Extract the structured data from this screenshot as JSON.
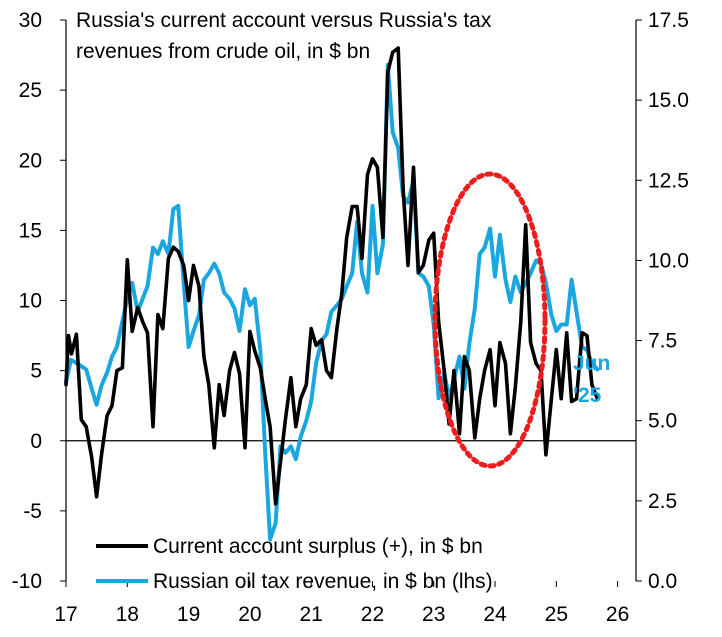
{
  "chart_data": {
    "type": "line",
    "title": "Russia's current account versus Russia's tax revenues from crude oil, in $ bn",
    "title_lines": [
      "Russia's current account versus Russia's tax",
      "revenues from crude oil, in $ bn"
    ],
    "x_ticks": [
      "17",
      "18",
      "19",
      "20",
      "21",
      "22",
      "23",
      "24",
      "25",
      "26"
    ],
    "xlim": [
      2017,
      2026.3
    ],
    "y_left": {
      "lim": [
        -10,
        30
      ],
      "ticks": [
        "30",
        "25",
        "20",
        "15",
        "10",
        "5",
        "0",
        "-5",
        "-10"
      ]
    },
    "y_right": {
      "lim": [
        0,
        17.5
      ],
      "ticks": [
        "17.5",
        "15.0",
        "12.5",
        "10.0",
        "7.5",
        "5.0",
        "2.5",
        "0.0"
      ]
    },
    "grid": false,
    "legend_position": "bottom-left",
    "annotation": {
      "lines": [
        "Jun",
        "'25"
      ],
      "color": "#1aa7e0"
    },
    "highlight": {
      "type": "dotted-ellipse",
      "color": "#ee1c1c"
    },
    "series": [
      {
        "name": "Current account surplus (+), in $ bn",
        "axis": "left",
        "color": "#000000",
        "points": [
          [
            2017.0,
            4.0
          ],
          [
            2017.04,
            7.5
          ],
          [
            2017.09,
            6.2
          ],
          [
            2017.17,
            7.6
          ],
          [
            2017.25,
            1.5
          ],
          [
            2017.33,
            1.0
          ],
          [
            2017.42,
            -1.2
          ],
          [
            2017.5,
            -4.0
          ],
          [
            2017.58,
            -1.0
          ],
          [
            2017.67,
            1.8
          ],
          [
            2017.75,
            2.5
          ],
          [
            2017.83,
            5.0
          ],
          [
            2017.92,
            5.2
          ],
          [
            2018.0,
            12.9
          ],
          [
            2018.08,
            7.8
          ],
          [
            2018.17,
            9.5
          ],
          [
            2018.25,
            8.5
          ],
          [
            2018.33,
            7.7
          ],
          [
            2018.42,
            1.0
          ],
          [
            2018.5,
            9.0
          ],
          [
            2018.58,
            8.0
          ],
          [
            2018.67,
            13.0
          ],
          [
            2018.75,
            13.8
          ],
          [
            2018.83,
            13.5
          ],
          [
            2018.92,
            12.5
          ],
          [
            2019.0,
            10.0
          ],
          [
            2019.08,
            12.5
          ],
          [
            2019.17,
            11.0
          ],
          [
            2019.25,
            6.0
          ],
          [
            2019.33,
            4.0
          ],
          [
            2019.42,
            -0.5
          ],
          [
            2019.5,
            4.0
          ],
          [
            2019.58,
            1.8
          ],
          [
            2019.67,
            5.0
          ],
          [
            2019.75,
            6.3
          ],
          [
            2019.83,
            4.8
          ],
          [
            2019.92,
            -0.5
          ],
          [
            2020.0,
            7.8
          ],
          [
            2020.08,
            6.4
          ],
          [
            2020.17,
            5.2
          ],
          [
            2020.25,
            3.0
          ],
          [
            2020.33,
            1.0
          ],
          [
            2020.42,
            -4.5
          ],
          [
            2020.5,
            -1.5
          ],
          [
            2020.58,
            1.5
          ],
          [
            2020.67,
            4.5
          ],
          [
            2020.75,
            1.0
          ],
          [
            2020.83,
            3.0
          ],
          [
            2020.92,
            4.0
          ],
          [
            2021.0,
            8.0
          ],
          [
            2021.08,
            6.8
          ],
          [
            2021.17,
            7.2
          ],
          [
            2021.25,
            5.0
          ],
          [
            2021.33,
            4.5
          ],
          [
            2021.42,
            8.0
          ],
          [
            2021.5,
            10.5
          ],
          [
            2021.58,
            14.5
          ],
          [
            2021.67,
            16.7
          ],
          [
            2021.75,
            16.7
          ],
          [
            2021.83,
            13.0
          ],
          [
            2021.92,
            19.0
          ],
          [
            2022.0,
            20.1
          ],
          [
            2022.08,
            19.5
          ],
          [
            2022.17,
            14.5
          ],
          [
            2022.25,
            26.3
          ],
          [
            2022.33,
            27.7
          ],
          [
            2022.42,
            28.0
          ],
          [
            2022.5,
            18.0
          ],
          [
            2022.58,
            12.5
          ],
          [
            2022.67,
            19.5
          ],
          [
            2022.75,
            12.0
          ],
          [
            2022.83,
            12.5
          ],
          [
            2022.92,
            14.3
          ],
          [
            2023.0,
            14.8
          ],
          [
            2023.08,
            8.5
          ],
          [
            2023.17,
            5.0
          ],
          [
            2023.25,
            1.2
          ],
          [
            2023.33,
            5.0
          ],
          [
            2023.42,
            0.5
          ],
          [
            2023.5,
            6.0
          ],
          [
            2023.58,
            5.0
          ],
          [
            2023.67,
            0.2
          ],
          [
            2023.75,
            3.0
          ],
          [
            2023.83,
            5.0
          ],
          [
            2023.92,
            6.5
          ],
          [
            2024.0,
            2.5
          ],
          [
            2024.08,
            7.0
          ],
          [
            2024.17,
            5.5
          ],
          [
            2024.25,
            0.5
          ],
          [
            2024.33,
            3.8
          ],
          [
            2024.42,
            8.5
          ],
          [
            2024.5,
            15.4
          ],
          [
            2024.58,
            7.0
          ],
          [
            2024.67,
            5.5
          ],
          [
            2024.75,
            5.0
          ],
          [
            2024.83,
            -1.0
          ],
          [
            2024.92,
            3.0
          ],
          [
            2025.0,
            6.5
          ],
          [
            2025.08,
            3.0
          ],
          [
            2025.17,
            7.7
          ],
          [
            2025.25,
            2.8
          ],
          [
            2025.33,
            3.0
          ],
          [
            2025.42,
            7.7
          ],
          [
            2025.5,
            7.5
          ],
          [
            2025.58,
            4.0
          ],
          [
            2025.67,
            3.0
          ]
        ]
      },
      {
        "name": "Russian oil tax revenue, in $ bn (lhs)",
        "axis": "right",
        "color": "#1aa7e0",
        "points": [
          [
            2017.0,
            6.2
          ],
          [
            2017.08,
            6.9
          ],
          [
            2017.17,
            6.8
          ],
          [
            2017.25,
            6.7
          ],
          [
            2017.33,
            6.6
          ],
          [
            2017.42,
            6.0
          ],
          [
            2017.5,
            5.5
          ],
          [
            2017.58,
            6.1
          ],
          [
            2017.67,
            6.5
          ],
          [
            2017.75,
            7.0
          ],
          [
            2017.83,
            7.3
          ],
          [
            2017.92,
            8.1
          ],
          [
            2018.0,
            8.8
          ],
          [
            2018.08,
            9.3
          ],
          [
            2018.17,
            8.4
          ],
          [
            2018.25,
            8.8
          ],
          [
            2018.33,
            9.2
          ],
          [
            2018.42,
            10.4
          ],
          [
            2018.5,
            10.2
          ],
          [
            2018.58,
            10.6
          ],
          [
            2018.67,
            10.2
          ],
          [
            2018.75,
            11.6
          ],
          [
            2018.83,
            11.7
          ],
          [
            2018.92,
            9.3
          ],
          [
            2019.0,
            7.3
          ],
          [
            2019.08,
            7.8
          ],
          [
            2019.17,
            8.3
          ],
          [
            2019.25,
            9.4
          ],
          [
            2019.33,
            9.6
          ],
          [
            2019.42,
            9.9
          ],
          [
            2019.5,
            9.6
          ],
          [
            2019.58,
            9.0
          ],
          [
            2019.67,
            8.8
          ],
          [
            2019.75,
            8.5
          ],
          [
            2019.83,
            7.8
          ],
          [
            2019.92,
            9.1
          ],
          [
            2020.0,
            8.6
          ],
          [
            2020.08,
            8.8
          ],
          [
            2020.17,
            7.2
          ],
          [
            2020.25,
            4.0
          ],
          [
            2020.33,
            1.3
          ],
          [
            2020.42,
            1.8
          ],
          [
            2020.5,
            4.2
          ],
          [
            2020.58,
            4.0
          ],
          [
            2020.67,
            4.2
          ],
          [
            2020.75,
            3.8
          ],
          [
            2020.83,
            4.5
          ],
          [
            2020.92,
            5.0
          ],
          [
            2021.0,
            5.6
          ],
          [
            2021.08,
            6.8
          ],
          [
            2021.17,
            7.5
          ],
          [
            2021.25,
            7.7
          ],
          [
            2021.33,
            8.4
          ],
          [
            2021.42,
            8.6
          ],
          [
            2021.5,
            8.8
          ],
          [
            2021.58,
            9.2
          ],
          [
            2021.67,
            9.6
          ],
          [
            2021.75,
            11.2
          ],
          [
            2021.83,
            9.6
          ],
          [
            2021.92,
            9.0
          ],
          [
            2022.0,
            11.7
          ],
          [
            2022.08,
            9.6
          ],
          [
            2022.17,
            10.5
          ],
          [
            2022.25,
            16.1
          ],
          [
            2022.33,
            14.0
          ],
          [
            2022.42,
            13.5
          ],
          [
            2022.5,
            12.0
          ],
          [
            2022.58,
            11.8
          ],
          [
            2022.67,
            12.5
          ],
          [
            2022.75,
            9.6
          ],
          [
            2022.83,
            9.5
          ],
          [
            2022.92,
            9.2
          ],
          [
            2023.0,
            8.0
          ],
          [
            2023.08,
            5.7
          ],
          [
            2023.17,
            6.5
          ],
          [
            2023.25,
            5.7
          ],
          [
            2023.33,
            6.3
          ],
          [
            2023.42,
            7.0
          ],
          [
            2023.5,
            6.0
          ],
          [
            2023.58,
            7.4
          ],
          [
            2023.67,
            8.5
          ],
          [
            2023.75,
            10.2
          ],
          [
            2023.83,
            10.4
          ],
          [
            2023.92,
            11.0
          ],
          [
            2024.0,
            9.5
          ],
          [
            2024.08,
            10.8
          ],
          [
            2024.17,
            9.4
          ],
          [
            2024.25,
            8.7
          ],
          [
            2024.33,
            9.5
          ],
          [
            2024.42,
            9.0
          ],
          [
            2024.5,
            9.3
          ],
          [
            2024.58,
            9.6
          ],
          [
            2024.67,
            10.0
          ],
          [
            2024.75,
            9.9
          ],
          [
            2024.83,
            9.3
          ],
          [
            2024.92,
            8.3
          ],
          [
            2025.0,
            7.8
          ],
          [
            2025.08,
            8.0
          ],
          [
            2025.17,
            8.0
          ],
          [
            2025.25,
            9.4
          ],
          [
            2025.33,
            8.4
          ],
          [
            2025.42,
            7.3
          ],
          [
            2025.5,
            7.2
          ],
          [
            2025.58,
            6.8
          ],
          [
            2025.67,
            6.6
          ]
        ]
      }
    ]
  }
}
